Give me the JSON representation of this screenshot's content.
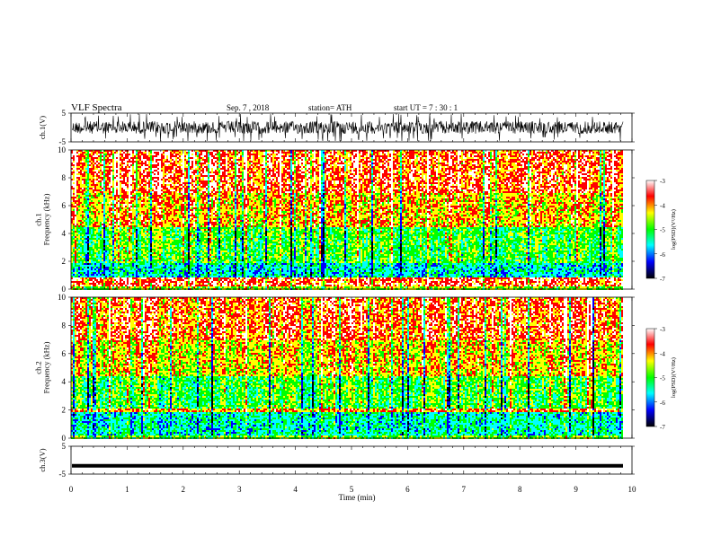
{
  "header": {
    "title": "VLF  Spectra",
    "date": "Sep. 7  , 2018",
    "station": "station= ATH",
    "start": "start  UT  =    7  : 30 : 1"
  },
  "chart_data": [
    {
      "type": "line",
      "name": "ch1-waveform",
      "ylabel": "ch.1(V)",
      "ylim": [
        -5,
        5
      ],
      "yticks": [
        "5",
        "-5"
      ],
      "xlim": [
        0,
        10
      ],
      "description_values": "noisy waveform, amplitude about ±2 V, full-scale spikes"
    },
    {
      "type": "heatmap",
      "name": "ch1-spectrogram",
      "ylabel": "ch.1\nFrequency  (kHz)",
      "ylabel_lines": [
        "ch.1",
        "Frequency  (kHz)"
      ],
      "ylim": [
        0,
        10
      ],
      "yticks": [
        "0",
        "2",
        "4",
        "6",
        "8",
        "10"
      ],
      "xlim": [
        0,
        9.8
      ],
      "colorbar": {
        "label": "log(PSD)(V²/Hz)",
        "ticks": [
          "-3",
          "-4",
          "-5",
          "-6",
          "-7"
        ],
        "range": [
          -7,
          -3
        ]
      },
      "bands": [
        {
          "from": 0.0,
          "to": 0.3,
          "level": -4.6
        },
        {
          "from": 0.3,
          "to": 0.9,
          "level": -3.6
        },
        {
          "from": 0.9,
          "to": 2.0,
          "level": -5.6
        },
        {
          "from": 2.0,
          "to": 4.5,
          "level": -5.0
        },
        {
          "from": 4.5,
          "to": 7.0,
          "level": -4.2
        },
        {
          "from": 7.0,
          "to": 10.0,
          "level": -3.7
        }
      ]
    },
    {
      "type": "heatmap",
      "name": "ch2-spectrogram",
      "ylabel_lines": [
        "ch.2",
        "Frequency  (kHz)"
      ],
      "ylim": [
        0,
        10
      ],
      "yticks": [
        "0",
        "2",
        "4",
        "6",
        "8",
        "10"
      ],
      "xlim": [
        0,
        9.8
      ],
      "colorbar": {
        "label": "log(PSD)(V²/Hz)",
        "ticks": [
          "-3",
          "-4",
          "-5",
          "-6",
          "-7"
        ],
        "range": [
          -7,
          -3
        ]
      },
      "bands": [
        {
          "from": 0.0,
          "to": 0.3,
          "level": -4.8
        },
        {
          "from": 0.3,
          "to": 1.9,
          "level": -5.5
        },
        {
          "from": 1.9,
          "to": 2.2,
          "level": -4.0
        },
        {
          "from": 2.2,
          "to": 4.5,
          "level": -5.0
        },
        {
          "from": 4.5,
          "to": 7.0,
          "level": -4.3
        },
        {
          "from": 7.0,
          "to": 10.0,
          "level": -3.8
        }
      ]
    },
    {
      "type": "line",
      "name": "ch3-waveform",
      "ylabel": "ch.3(V)",
      "ylim": [
        -5,
        5
      ],
      "yticks": [
        "5",
        "-5"
      ],
      "xlim": [
        0,
        10
      ],
      "value": -2
    }
  ],
  "xaxis": {
    "label": "Time  (min)",
    "ticks": [
      "0",
      "1",
      "2",
      "3",
      "4",
      "5",
      "6",
      "7",
      "8",
      "9",
      "10"
    ],
    "range": [
      0,
      10
    ]
  },
  "colormap": [
    "#000000",
    "#0000ff",
    "#00ffff",
    "#00ff00",
    "#ffff00",
    "#ff0000",
    "#ffffff"
  ]
}
